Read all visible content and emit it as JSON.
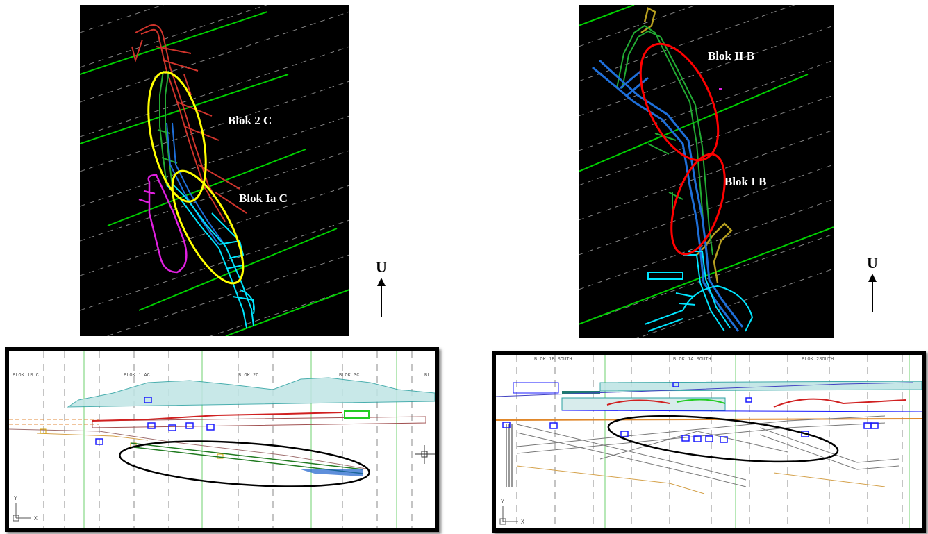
{
  "left_plan": {
    "labels": {
      "upper": "Blok 2 C",
      "lower": "Blok Ia C"
    },
    "highlight_color": "#ffff00"
  },
  "right_plan": {
    "labels": {
      "upper": "Blok II B",
      "lower": "Blok I B"
    },
    "highlight_color": "#ff0000"
  },
  "north_indicator": {
    "letter": "U"
  },
  "left_section": {
    "block_labels": [
      "BLOK 1B C",
      "BLOK 1 AC",
      "BLOK 2C",
      "BLOK 3C",
      "BL"
    ],
    "axis": {
      "y": "Y",
      "x": "X"
    }
  },
  "right_section": {
    "block_labels": [
      "BLOK 1B SOUTH",
      "BLOK 1A SOUTH",
      "BLOK 2SOUTH"
    ],
    "axis": {
      "y": "Y",
      "x": "X"
    }
  },
  "colors": {
    "plan_background": "#000000",
    "grid_line": "#00d000",
    "cyan_workings": "#00e5ff",
    "blue_workings": "#1e6fd9",
    "green_workings": "#22aa33",
    "red_workings": "#d0342c",
    "magenta_workings": "#e020e0",
    "olive_workings": "#b8a020",
    "ellipse_section": "#000000"
  }
}
